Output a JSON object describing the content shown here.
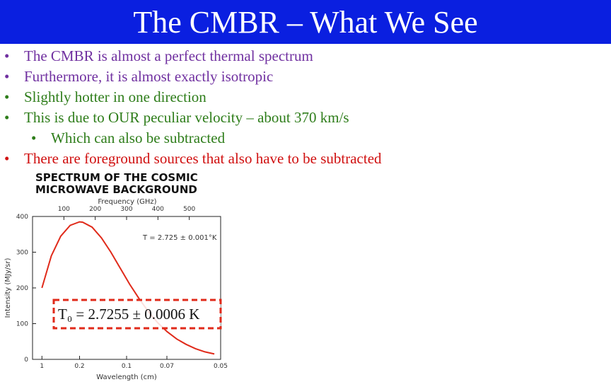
{
  "title": "The CMBR – What We See",
  "colors": {
    "title_bar": "#0a1fe0",
    "purple": "#7030a0",
    "green": "#2e7d1a",
    "red": "#d01010",
    "curve": "#e02a1a",
    "box": "#e02a1a"
  },
  "bullets": [
    {
      "text": "The CMBR is almost a perfect thermal spectrum",
      "level": 1,
      "color": "#7030a0"
    },
    {
      "text": "Furthermore, it is almost exactly isotropic",
      "level": 1,
      "color": "#7030a0"
    },
    {
      "text": "Slightly hotter in one direction",
      "level": 1,
      "color": "#2e7d1a"
    },
    {
      "text": "This is due to OUR peculiar velocity – about 370 km/s",
      "level": 1,
      "color": "#2e7d1a"
    },
    {
      "text": "Which can also be subtracted",
      "level": 2,
      "color": "#2e7d1a"
    },
    {
      "text": "There are foreground sources that also have to be subtracted",
      "level": 1,
      "color": "#d01010"
    }
  ],
  "chart_data": {
    "type": "line",
    "title_line1": "SPECTRUM OF THE COSMIC",
    "title_line2": "MICROWAVE BACKGROUND",
    "top_axis_label": "Frequency (GHz)",
    "top_ticks": [
      "100",
      "200",
      "300",
      "400",
      "500"
    ],
    "ylabel": "Intensity (MJy/sr)",
    "xlabel": "Wavelength (cm)",
    "y_ticks": [
      "0",
      "100",
      "200",
      "300",
      "400"
    ],
    "ylim": [
      0,
      400
    ],
    "x_ticks": [
      "1",
      "0.2",
      "0.1",
      "0.07",
      "0.05"
    ],
    "xlim_frequency_ghz": [
      0,
      600
    ],
    "annotation": "T = 2.725 ± 0.001°K",
    "boxed_label": "T₀ = 2.7255 ± 0.0006 K",
    "series": [
      {
        "x_frequency_ghz": [
          30,
          60,
          90,
          120,
          150,
          160,
          190,
          220,
          250,
          280,
          310,
          340,
          370,
          400,
          430,
          460,
          490,
          520,
          550,
          580
        ],
        "values": [
          200,
          290,
          345,
          375,
          385,
          384,
          370,
          340,
          300,
          255,
          210,
          170,
          133,
          102,
          77,
          57,
          42,
          30,
          21,
          15
        ]
      }
    ]
  }
}
